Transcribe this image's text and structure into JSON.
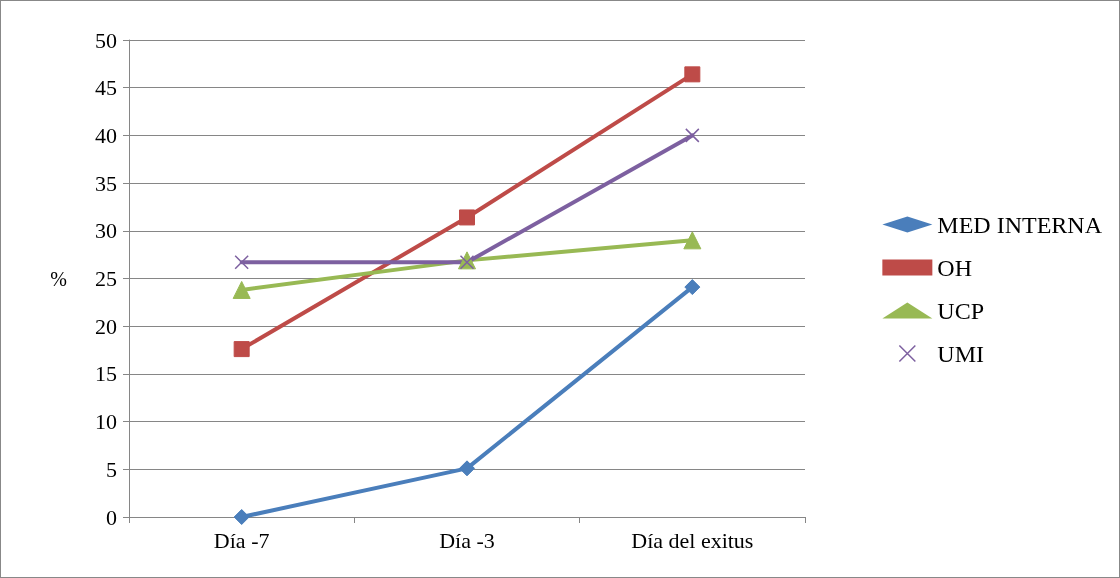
{
  "chart_data": {
    "type": "line",
    "ylabel": "%",
    "categories": [
      "Día -7",
      "Día -3",
      "Día del exitus"
    ],
    "series": [
      {
        "name": "MED INTERNA",
        "color": "#4a7ebb",
        "marker": "diamond",
        "values": [
          0,
          5.1,
          24.1
        ]
      },
      {
        "name": "OH",
        "color": "#be4b48",
        "marker": "square",
        "values": [
          17.6,
          31.4,
          46.4
        ]
      },
      {
        "name": "UCP",
        "color": "#98b954",
        "marker": "triangle",
        "values": [
          23.8,
          26.9,
          29.0
        ]
      },
      {
        "name": "UMI",
        "color": "#7d60a0",
        "marker": "cross",
        "values": [
          26.7,
          26.7,
          40.0
        ]
      }
    ],
    "ylim": [
      0,
      50
    ],
    "yticks": [
      0,
      5,
      10,
      15,
      20,
      25,
      30,
      35,
      40,
      45,
      50
    ],
    "grid": "y",
    "legend": "right"
  }
}
